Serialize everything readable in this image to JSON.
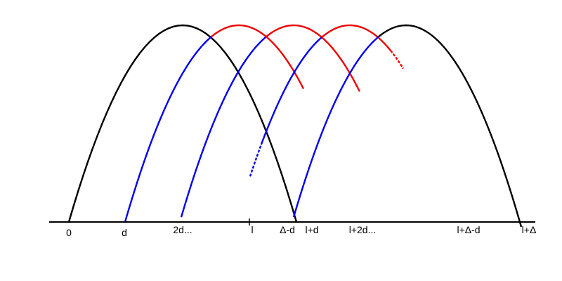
{
  "colors": {
    "background": "#ffffff",
    "axis": "#000000",
    "outer_arc": "#000000",
    "left_side": "#0000ee",
    "right_side": "#ee0000"
  },
  "axis": {
    "tick_labels": [
      "0",
      "d",
      "2d...",
      "l",
      "Δ-d",
      "l+d",
      "l+2d...",
      "l+Δ-d",
      "l+Δ"
    ]
  }
}
